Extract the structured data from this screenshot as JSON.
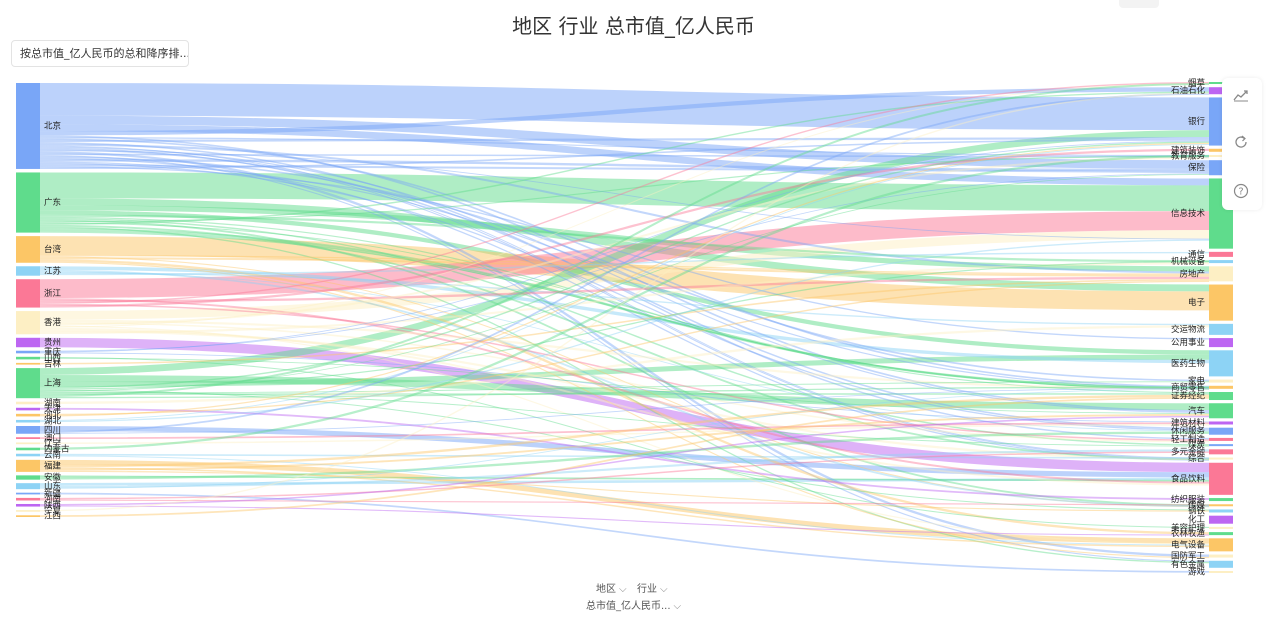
{
  "title": "地区 行业 总市值_亿人民币",
  "sort_label": "按总市值_亿人民币的总和降序排...",
  "icons": {
    "trend": "trend-line-icon",
    "refresh": "refresh-icon",
    "help": "help-icon",
    "chevron": "chevron-down-icon"
  },
  "controls": {
    "field1": "地区",
    "field2": "行业",
    "field3": "总市值_亿人民币..."
  },
  "chart_data": {
    "type": "sankey",
    "title": "地区 行业 总市值_亿人民币",
    "source_field": "地区",
    "target_field": "行业",
    "value_field": "总市值_亿人民币",
    "regions": [
      {
        "name": "北京",
        "value": 100,
        "color": "#79a6f7"
      },
      {
        "name": "广东",
        "value": 70,
        "color": "#5fdc8c"
      },
      {
        "name": "台湾",
        "value": 31,
        "color": "#fcc666"
      },
      {
        "name": "江苏",
        "value": 11,
        "color": "#8dd3f5"
      },
      {
        "name": "浙江",
        "value": 33,
        "color": "#fb7896"
      },
      {
        "name": "香港",
        "value": 27,
        "color": "#fdefc4"
      },
      {
        "name": "贵州",
        "value": 11,
        "color": "#bd66f2"
      },
      {
        "name": "重庆",
        "value": 3,
        "color": "#79a6f7"
      },
      {
        "name": "山西",
        "value": 3,
        "color": "#5fdc8c"
      },
      {
        "name": "吉林",
        "value": 2,
        "color": "#fcc666"
      },
      {
        "name": "上海",
        "value": 35,
        "color": "#5fdc8c"
      },
      {
        "name": "湖南",
        "value": 3,
        "color": "#fdefc4"
      },
      {
        "name": "天津",
        "value": 3,
        "color": "#bd66f2"
      },
      {
        "name": "河北",
        "value": 3,
        "color": "#fcc666"
      },
      {
        "name": "湖北",
        "value": 3,
        "color": "#8dd3f5"
      },
      {
        "name": "四川",
        "value": 9,
        "color": "#79a6f7"
      },
      {
        "name": "澳门",
        "value": 2,
        "color": "#fb7896"
      },
      {
        "name": "辽宁",
        "value": 2,
        "color": "#fdefc4"
      },
      {
        "name": "内蒙古",
        "value": 3,
        "color": "#5fdc8c"
      },
      {
        "name": "云南",
        "value": 3,
        "color": "#8dd3f5"
      },
      {
        "name": "福建",
        "value": 14,
        "color": "#fcc666"
      },
      {
        "name": "安徽",
        "value": 5,
        "color": "#5fdc8c"
      },
      {
        "name": "山东",
        "value": 7,
        "color": "#8dd3f5"
      },
      {
        "name": "新疆",
        "value": 2,
        "color": "#79a6f7"
      },
      {
        "name": "河南",
        "value": 3,
        "color": "#fb7896"
      },
      {
        "name": "陕西",
        "value": 3,
        "color": "#bd66f2"
      },
      {
        "name": "宁夏",
        "value": 2,
        "color": "#fdefc4"
      },
      {
        "name": "江西",
        "value": 2,
        "color": "#fcc666"
      }
    ],
    "industries": [
      {
        "name": "烟草",
        "value": 2,
        "color": "#5fdc8c"
      },
      {
        "name": "石油石化",
        "value": 7,
        "color": "#bd66f2"
      },
      {
        "name": "银行",
        "value": 48,
        "color": "#79a6f7"
      },
      {
        "name": "建筑装饰",
        "value": 3,
        "color": "#fcc666"
      },
      {
        "name": "教育服务",
        "value": 2,
        "color": "#fdefc4"
      },
      {
        "name": "保险",
        "value": 15,
        "color": "#79a6f7"
      },
      {
        "name": "信息技术",
        "value": 70,
        "color": "#5fdc8c"
      },
      {
        "name": "通信",
        "value": 5,
        "color": "#fb7896"
      },
      {
        "name": "机械设备",
        "value": 3,
        "color": "#8dd3f5"
      },
      {
        "name": "房地产",
        "value": 15,
        "color": "#fdefc4"
      },
      {
        "name": "电子",
        "value": 36,
        "color": "#fcc666"
      },
      {
        "name": "交运物流",
        "value": 11,
        "color": "#8dd3f5"
      },
      {
        "name": "公用事业",
        "value": 9,
        "color": "#bd66f2"
      },
      {
        "name": "医药生物",
        "value": 26,
        "color": "#8dd3f5"
      },
      {
        "name": "家电",
        "value": 3,
        "color": "#fdefc4"
      },
      {
        "name": "商贸零售",
        "value": 3,
        "color": "#fcc666"
      },
      {
        "name": "证券经纪",
        "value": 8,
        "color": "#5fdc8c"
      },
      {
        "name": "汽车",
        "value": 15,
        "color": "#5fdc8c"
      },
      {
        "name": "建筑材料",
        "value": 3,
        "color": "#bd66f2"
      },
      {
        "name": "休闲服务",
        "value": 7,
        "color": "#79a6f7"
      },
      {
        "name": "轻工制造",
        "value": 3,
        "color": "#fb7896"
      },
      {
        "name": "煤炭",
        "value": 2,
        "color": "#79a6f7"
      },
      {
        "name": "多元金融",
        "value": 5,
        "color": "#fb7896"
      },
      {
        "name": "综合",
        "value": 2,
        "color": "#fdefc4"
      },
      {
        "name": "食品饮料",
        "value": 32,
        "color": "#fb7896"
      },
      {
        "name": "纺织服装",
        "value": 3,
        "color": "#5fdc8c"
      },
      {
        "name": "传媒",
        "value": 2,
        "color": "#fcc666"
      },
      {
        "name": "钢铁",
        "value": 3,
        "color": "#8dd3f5"
      },
      {
        "name": "化工",
        "value": 8,
        "color": "#bd66f2"
      },
      {
        "name": "美容护理",
        "value": 2,
        "color": "#fdefc4"
      },
      {
        "name": "农林牧渔",
        "value": 3,
        "color": "#5fdc8c"
      },
      {
        "name": "电气设备",
        "value": 13,
        "color": "#fcc666"
      },
      {
        "name": "国防军工",
        "value": 3,
        "color": "#fdefc4"
      },
      {
        "name": "有色金属",
        "value": 7,
        "color": "#8dd3f5"
      },
      {
        "name": "游戏",
        "value": 2,
        "color": "#fdefc4"
      }
    ],
    "major_flows": [
      {
        "source": "北京",
        "target": "银行",
        "value": 38
      },
      {
        "source": "北京",
        "target": "保险",
        "value": 10
      },
      {
        "source": "北京",
        "target": "信息技术",
        "value": 8
      },
      {
        "source": "北京",
        "target": "石油石化",
        "value": 5
      },
      {
        "source": "广东",
        "target": "信息技术",
        "value": 30
      },
      {
        "source": "广东",
        "target": "电子",
        "value": 8
      },
      {
        "source": "广东",
        "target": "房地产",
        "value": 6
      },
      {
        "source": "广东",
        "target": "医药生物",
        "value": 5
      },
      {
        "source": "台湾",
        "target": "电子",
        "value": 22
      },
      {
        "source": "浙江",
        "target": "信息技术",
        "value": 22
      },
      {
        "source": "香港",
        "target": "信息技术",
        "value": 10
      },
      {
        "source": "贵州",
        "target": "食品饮料",
        "value": 11
      },
      {
        "source": "上海",
        "target": "银行",
        "value": 8
      },
      {
        "source": "上海",
        "target": "汽车",
        "value": 8
      },
      {
        "source": "上海",
        "target": "医药生物",
        "value": 6
      },
      {
        "source": "四川",
        "target": "食品饮料",
        "value": 6
      },
      {
        "source": "福建",
        "target": "电气设备",
        "value": 6
      },
      {
        "source": "山东",
        "target": "食品饮料",
        "value": 3
      },
      {
        "source": "江苏",
        "target": "医药生物",
        "value": 4
      },
      {
        "source": "安徽",
        "target": "食品饮料",
        "value": 2
      }
    ]
  }
}
